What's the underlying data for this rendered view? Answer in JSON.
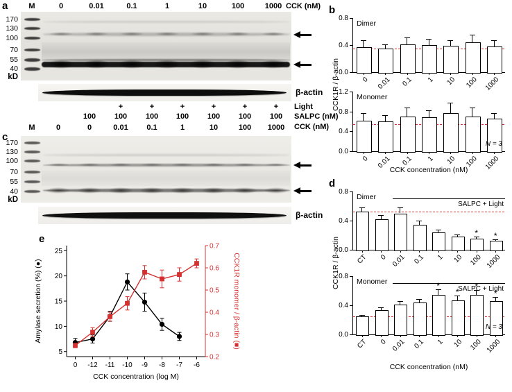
{
  "colors": {
    "accent_red": "#d43030",
    "band_dark": "#141414"
  },
  "western_a": {
    "panel_label": "a",
    "marker_label": "M",
    "lane_values": [
      "0",
      "0.01",
      "0.1",
      "1",
      "10",
      "100",
      "1000"
    ],
    "lane_unit": "CCK (nM)",
    "mw_markers": [
      "170",
      "130",
      "100",
      "70",
      "55",
      "40"
    ],
    "kd_label": "kD",
    "loading_control_label": "β-actin"
  },
  "treatment_rows": {
    "light": {
      "label": "Light",
      "values": [
        "+",
        "+",
        "+",
        "+",
        "+",
        "+"
      ]
    },
    "salpc": {
      "label": "SALPC (nM)",
      "values": [
        "100",
        "100",
        "100",
        "100",
        "100",
        "100",
        "100"
      ]
    },
    "cck": {
      "label": "CCK (nM)",
      "marker_label": "M",
      "values": [
        "0",
        "0",
        "0.01",
        "0.1",
        "1",
        "10",
        "100",
        "1000"
      ]
    }
  },
  "western_c": {
    "panel_label": "c",
    "mw_markers": [
      "170",
      "130",
      "100",
      "70",
      "55",
      "40"
    ],
    "kd_label": "kD",
    "loading_control_label": "β-actin"
  },
  "panel_b": {
    "panel_label": "b",
    "ylabel": "CCK1R / β-actin",
    "xlabel": "CCK concentration (nM)"
  },
  "panel_d": {
    "panel_label": "d",
    "ylabel": "CCK1R / β-actin",
    "xlabel": "CCK concentration (nM)"
  },
  "panel_e": {
    "panel_label": "e"
  },
  "chart_data": [
    {
      "id": "b-dimer",
      "type": "bar",
      "title": "Dimer",
      "categories": [
        "0",
        "0.01",
        "0.1",
        "1",
        "10",
        "100",
        "1000"
      ],
      "values": [
        0.37,
        0.35,
        0.41,
        0.4,
        0.39,
        0.44,
        0.38
      ],
      "errors": [
        0.1,
        0.06,
        0.1,
        0.09,
        0.08,
        0.11,
        0.09
      ],
      "ref_line": 0.35,
      "ylim": [
        0,
        0.8
      ],
      "yticks": [
        "0.8",
        "0.4",
        "0.0"
      ],
      "ylabel": "CCK1R / β-actin",
      "xlabel": "CCK concentration (nM)"
    },
    {
      "id": "b-monomer",
      "type": "bar",
      "title": "Monomer",
      "categories": [
        "0",
        "0.01",
        "0.1",
        "1",
        "10",
        "100",
        "1000"
      ],
      "values": [
        0.62,
        0.6,
        0.7,
        0.68,
        0.77,
        0.7,
        0.65
      ],
      "errors": [
        0.15,
        0.12,
        0.18,
        0.15,
        0.2,
        0.18,
        0.12
      ],
      "ref_line": 0.55,
      "ylim": [
        0,
        1.2
      ],
      "yticks": [
        "1.2",
        "0.8",
        "0.4",
        "0.0"
      ],
      "ylabel": "CCK1R / β-actin",
      "xlabel": "CCK concentration (nM)",
      "n_label": "N = 3"
    },
    {
      "id": "d-dimer",
      "type": "bar",
      "title": "Dimer",
      "categories": [
        "CT",
        "0",
        "0.01",
        "0.1",
        "1",
        "10",
        "100",
        "1000"
      ],
      "values": [
        0.52,
        0.42,
        0.5,
        0.34,
        0.24,
        0.18,
        0.15,
        0.12
      ],
      "errors": [
        0.06,
        0.06,
        0.08,
        0.06,
        0.04,
        0.03,
        0.03,
        0.02
      ],
      "sig": [
        "",
        "",
        "",
        "",
        "",
        "",
        "*",
        "*"
      ],
      "ref_line": 0.52,
      "ylim": [
        0,
        0.8
      ],
      "yticks": [
        "0.8",
        "0.4",
        "0.0"
      ],
      "ylabel": "CCK1R / β-actin",
      "xlabel": "CCK concentration (nM)",
      "bracket": {
        "label": "SALPC + Light",
        "from_index": 2
      }
    },
    {
      "id": "d-monomer",
      "type": "bar",
      "title": "Monomer",
      "categories": [
        "CT",
        "0",
        "0.01",
        "0.1",
        "1",
        "10",
        "100",
        "1000"
      ],
      "values": [
        0.25,
        0.33,
        0.41,
        0.44,
        0.54,
        0.47,
        0.54,
        0.46
      ],
      "errors": [
        0.02,
        0.04,
        0.05,
        0.05,
        0.08,
        0.06,
        0.07,
        0.05
      ],
      "sig": [
        "",
        "",
        "",
        "",
        "*",
        "*",
        "*",
        "*"
      ],
      "ref_line": 0.25,
      "ylim": [
        0,
        0.8
      ],
      "yticks": [
        "0.8",
        "0.4",
        "0.0"
      ],
      "ylabel": "CCK1R / β-actin",
      "xlabel": "CCK concentration (nM)",
      "bracket": {
        "label": "SALPC + Light",
        "from_index": 2
      },
      "n_label": "N = 3"
    },
    {
      "id": "e-dual",
      "type": "line",
      "x_categories": [
        "0",
        "-12",
        "-11",
        "-10",
        "-9",
        "-8",
        "-7",
        "-6"
      ],
      "xlabel": "CCK concentration (log M)",
      "left_axis": {
        "label": "Amylase secretion (%) (●)",
        "ticks": [
          "5",
          "10",
          "15",
          "20",
          "25"
        ],
        "range": [
          5,
          25
        ]
      },
      "right_axis": {
        "label": "CCK1R monomer / β-actin (■)",
        "ticks": [
          "0.2",
          "0.3",
          "0.4",
          "0.5",
          "0.6",
          "0.7"
        ],
        "range": [
          0.2,
          0.7
        ],
        "color": "#d43030"
      },
      "series": [
        {
          "name": "Amylase secretion (%)",
          "axis": "left",
          "marker": "circle",
          "color": "#000000",
          "x": [
            "0",
            "-12",
            "-11",
            "-10",
            "-9",
            "-8",
            "-7"
          ],
          "values": [
            6.8,
            7.5,
            12.0,
            18.8,
            14.8,
            10.4,
            8.0
          ],
          "errors": [
            0.8,
            0.8,
            1.0,
            1.6,
            1.8,
            1.2,
            0.8
          ]
        },
        {
          "name": "CCK1R monomer / β-actin",
          "axis": "right",
          "marker": "square",
          "color": "#d43030",
          "x": [
            "0",
            "-12",
            "-11",
            "-10",
            "-9",
            "-8",
            "-7",
            "-6"
          ],
          "values": [
            0.25,
            0.31,
            0.38,
            0.44,
            0.58,
            0.55,
            0.57,
            0.62
          ],
          "errors": [
            0.01,
            0.02,
            0.02,
            0.03,
            0.03,
            0.04,
            0.03,
            0.02
          ]
        }
      ]
    }
  ]
}
